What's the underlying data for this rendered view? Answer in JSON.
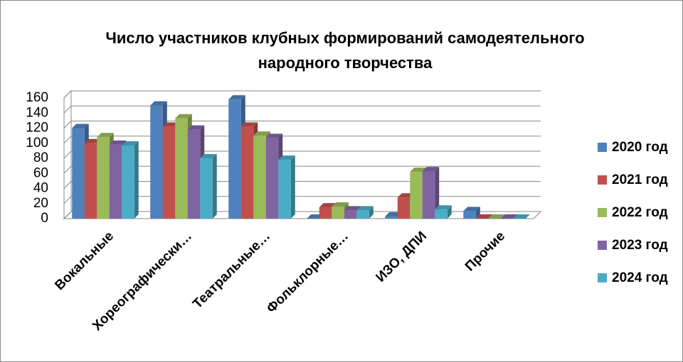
{
  "chart_data": {
    "type": "bar3d",
    "title": [
      "Число участников клубных формирований самодеятельного",
      "народного творчества"
    ],
    "categories": [
      "Вокальные",
      "Хореографически…",
      "Театральные…",
      "Фольклорные…",
      "ИЗО, ДПИ",
      "Прочие"
    ],
    "series": [
      {
        "name": "2020 год",
        "color": "#4f81bd",
        "values": [
          120,
          150,
          158,
          0,
          3,
          10
        ]
      },
      {
        "name": "2021 год",
        "color": "#c0504d",
        "values": [
          100,
          122,
          122,
          15,
          28,
          0
        ]
      },
      {
        "name": "2022 год",
        "color": "#9bbb59",
        "values": [
          108,
          133,
          110,
          16,
          62,
          0
        ]
      },
      {
        "name": "2023 год",
        "color": "#8064a2",
        "values": [
          98,
          118,
          107,
          11,
          63,
          0
        ]
      },
      {
        "name": "2024 год",
        "color": "#4bacc6",
        "values": [
          97,
          80,
          78,
          11,
          12,
          0
        ]
      }
    ],
    "ylim": [
      0,
      160
    ],
    "yticks": [
      0,
      20,
      40,
      60,
      80,
      100,
      120,
      140,
      160
    ],
    "grid": true,
    "legend": "right"
  }
}
